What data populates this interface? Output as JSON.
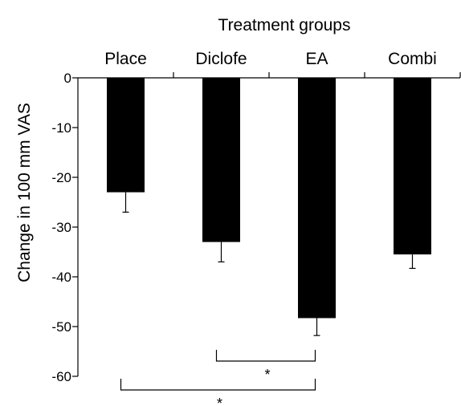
{
  "chart_data": {
    "type": "bar",
    "title": "Treatment groups",
    "xlabel": "",
    "ylabel": "Change in 100 mm VAS",
    "categories": [
      "Place",
      "Diclofe",
      "EA",
      "Combi"
    ],
    "values": [
      -23,
      -33,
      -48.3,
      -35.5
    ],
    "errors": [
      4,
      4,
      3.5,
      2.8
    ],
    "ylim": [
      -60,
      0
    ],
    "yticks": [
      "0",
      "-10",
      "-20",
      "-30",
      "-40",
      "-50",
      "-60"
    ],
    "bar_color": "#000000",
    "grid": false,
    "legend": "none",
    "significance": [
      {
        "from": 1,
        "to": 2,
        "label": "*"
      },
      {
        "from": 0,
        "to": 2,
        "label": "*"
      }
    ]
  }
}
